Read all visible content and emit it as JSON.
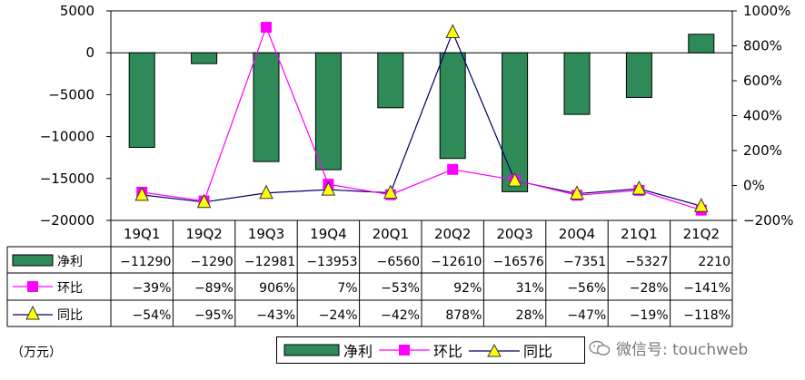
{
  "chart_data": {
    "type": "bar",
    "categories": [
      "19Q1",
      "19Q2",
      "19Q3",
      "19Q4",
      "20Q1",
      "20Q2",
      "20Q3",
      "20Q4",
      "21Q1",
      "21Q2"
    ],
    "series": [
      {
        "name": "净利",
        "type": "bar",
        "axis": "left",
        "values": [
          -11290,
          -1290,
          -12981,
          -13953,
          -6560,
          -12610,
          -16576,
          -7351,
          -5327,
          2210
        ],
        "labels": [
          "-11290",
          "-1290",
          "-12981",
          "-13953",
          "-6560",
          "-12610",
          "-16576",
          "-7351",
          "-5327",
          "2210"
        ]
      },
      {
        "name": "环比",
        "type": "line",
        "axis": "right",
        "values": [
          -39,
          -89,
          906,
          7,
          -53,
          92,
          31,
          -56,
          -28,
          -141
        ],
        "labels": [
          "-39%",
          "-89%",
          "906%",
          "7%",
          "-53%",
          "92%",
          "31%",
          "-56%",
          "-28%",
          "-141%"
        ]
      },
      {
        "name": "同比",
        "type": "line",
        "axis": "right",
        "values": [
          -54,
          -95,
          -43,
          -24,
          -42,
          878,
          28,
          -47,
          -19,
          -118
        ],
        "labels": [
          "-54%",
          "-95%",
          "-43%",
          "-24%",
          "-42%",
          "878%",
          "28%",
          "-47%",
          "-19%",
          "-118%"
        ]
      }
    ],
    "y_left": {
      "min": -20000,
      "max": 5000,
      "ticks": [
        5000,
        0,
        -5000,
        -10000,
        -15000,
        -20000
      ]
    },
    "y_right": {
      "min": -200,
      "max": 1000,
      "ticks": [
        "1000%",
        "800%",
        "600%",
        "400%",
        "200%",
        "0%",
        "-200%"
      ]
    },
    "unit": "（万元）",
    "grid": false,
    "legend_position": "bottom",
    "data_table": true
  },
  "colors": {
    "bar": "#2e8b57",
    "mom": "#ff00ff",
    "yoy": "#ffff00",
    "yoy_line": "#000066"
  },
  "watermark": {
    "text": "微信号: touchweb",
    "icon": "wechat-icon"
  }
}
